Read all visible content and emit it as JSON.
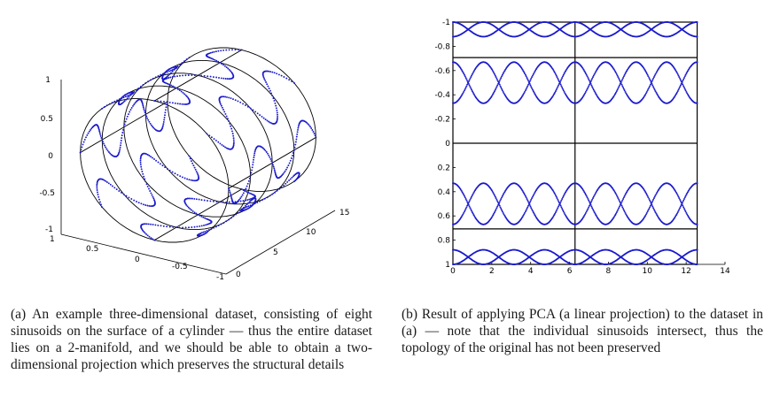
{
  "figure_a": {
    "z_ticks": [
      "1",
      "0.5",
      "0",
      "-0.5",
      "-1"
    ],
    "x_ticks": [
      "1",
      "0.5",
      "0",
      "-0.5",
      "-1"
    ],
    "y_ticks": [
      "0",
      "5",
      "10",
      "15"
    ],
    "caption": "(a) An example three-dimensional dataset, consisting of eight sinusoids on the surface of a cylinder — thus the entire dataset lies on a 2-manifold, and we should be able to obtain a two-dimensional projection which preserves the structural details"
  },
  "figure_b": {
    "y_ticks": [
      "1",
      "0.8",
      "0.6",
      "0.4",
      "0.2",
      "0",
      "-0.2",
      "-0.4",
      "-0.6",
      "-0.8",
      "-1"
    ],
    "x_ticks": [
      "0",
      "2",
      "4",
      "6",
      "8",
      "10",
      "12",
      "14"
    ],
    "caption": "(b) Result of applying PCA (a linear projection) to the dataset in (a) — note that the individual sinusoids intersect, thus the topology of the original has not been preserved"
  },
  "chart_data": [
    {
      "type": "scatter",
      "dims": 3,
      "zlim": [
        -1,
        1
      ],
      "xlim": [
        -1,
        1
      ],
      "ylim": [
        0,
        15
      ],
      "series": [
        {
          "curve": "sinusoid on cylinder surface",
          "count": 8,
          "color": "#1a1acc"
        }
      ],
      "grid": "cylinder wireframe (4 longitudinal lines, 5 cross-section circles)"
    },
    {
      "type": "scatter",
      "xlim": [
        0,
        14
      ],
      "ylim": [
        -1,
        1
      ],
      "x_ticks": [
        0,
        2,
        4,
        6,
        8,
        10,
        12,
        14
      ],
      "y_ticks": [
        -1,
        -0.8,
        -0.6,
        -0.4,
        -0.2,
        0,
        0.2,
        0.4,
        0.6,
        0.8,
        1
      ],
      "frame_x_range": [
        0,
        12.566
      ],
      "horizontal_lines": [
        -0.707,
        0,
        0.707
      ],
      "vertical_lines": [
        6.283
      ],
      "series": [
        {
          "y_center": 0.94,
          "amplitude": 0.06,
          "color": "#1a1acc"
        },
        {
          "y_center": 0.5,
          "amplitude": 0.17,
          "color": "#1a1acc"
        },
        {
          "y_center": -0.5,
          "amplitude": 0.17,
          "color": "#1a1acc"
        },
        {
          "y_center": -0.94,
          "amplitude": 0.06,
          "color": "#1a1acc"
        }
      ]
    }
  ]
}
